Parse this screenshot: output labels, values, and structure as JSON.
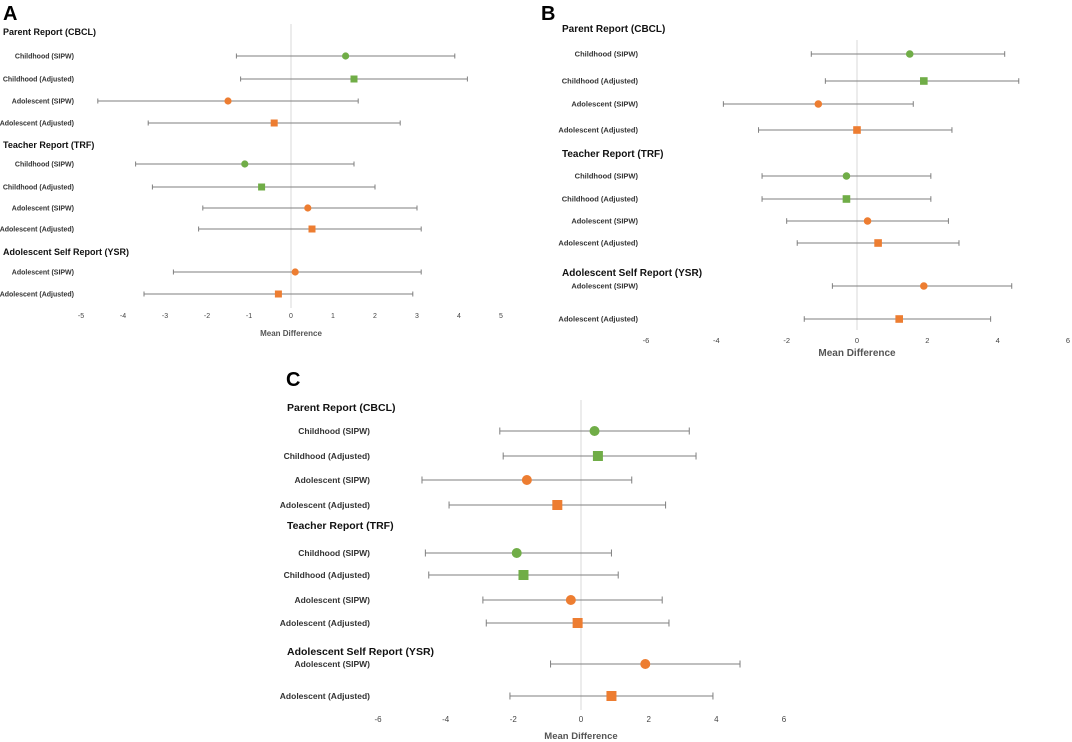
{
  "colors": {
    "green": "#70ad47",
    "orange": "#ed7d31",
    "ci": "#7f7f7f",
    "zero": "#d9d9d9"
  },
  "chart_data": [
    {
      "type": "forest",
      "panel": "A",
      "xlabel": "Mean Difference",
      "xlim": [
        -5,
        5
      ],
      "ticks": [
        "-5",
        "-4",
        "-3",
        "-2",
        "-1",
        "0",
        "1",
        "2",
        "3",
        "4",
        "5"
      ],
      "sections": [
        {
          "title": "Parent Report (CBCL)",
          "rows": [
            {
              "label": "Childhood (SIPW)",
              "mean": 1.3,
              "lower": -1.3,
              "upper": 3.9,
              "marker": "circle",
              "color": "green"
            },
            {
              "label": "Childhood (Adjusted)",
              "mean": 1.5,
              "lower": -1.2,
              "upper": 4.2,
              "marker": "square",
              "color": "green"
            },
            {
              "label": "Adolescent (SIPW)",
              "mean": -1.5,
              "lower": -4.6,
              "upper": 1.6,
              "marker": "circle",
              "color": "orange"
            },
            {
              "label": "Adolescent (Adjusted)",
              "mean": -0.4,
              "lower": -3.4,
              "upper": 2.6,
              "marker": "square",
              "color": "orange"
            }
          ]
        },
        {
          "title": "Teacher Report (TRF)",
          "rows": [
            {
              "label": "Childhood (SIPW)",
              "mean": -1.1,
              "lower": -3.7,
              "upper": 1.5,
              "marker": "circle",
              "color": "green"
            },
            {
              "label": "Childhood (Adjusted)",
              "mean": -0.7,
              "lower": -3.3,
              "upper": 2.0,
              "marker": "square",
              "color": "green"
            },
            {
              "label": "Adolescent (SIPW)",
              "mean": 0.4,
              "lower": -2.1,
              "upper": 3.0,
              "marker": "circle",
              "color": "orange"
            },
            {
              "label": "Adolescent (Adjusted)",
              "mean": 0.5,
              "lower": -2.2,
              "upper": 3.1,
              "marker": "square",
              "color": "orange"
            }
          ]
        },
        {
          "title": "Adolescent Self Report (YSR)",
          "rows": [
            {
              "label": "Adolescent (SIPW)",
              "mean": 0.1,
              "lower": -2.8,
              "upper": 3.1,
              "marker": "circle",
              "color": "orange"
            },
            {
              "label": "Adolescent (Adjusted)",
              "mean": -0.3,
              "lower": -3.5,
              "upper": 2.9,
              "marker": "square",
              "color": "orange"
            }
          ]
        }
      ]
    },
    {
      "type": "forest",
      "panel": "B",
      "xlabel": "Mean Difference",
      "xlim": [
        -6,
        6
      ],
      "ticks": [
        "-6",
        "-4",
        "-2",
        "0",
        "2",
        "4",
        "6"
      ],
      "sections": [
        {
          "title": "Parent Report (CBCL)",
          "rows": [
            {
              "label": "Childhood (SIPW)",
              "mean": 1.5,
              "lower": -1.3,
              "upper": 4.2,
              "marker": "circle",
              "color": "green"
            },
            {
              "label": "Childhood (Adjusted)",
              "mean": 1.9,
              "lower": -0.9,
              "upper": 4.6,
              "marker": "square",
              "color": "green"
            },
            {
              "label": "Adolescent (SIPW)",
              "mean": -1.1,
              "lower": -3.8,
              "upper": 1.6,
              "marker": "circle",
              "color": "orange"
            },
            {
              "label": "Adolescent (Adjusted)",
              "mean": 0.0,
              "lower": -2.8,
              "upper": 2.7,
              "marker": "square",
              "color": "orange"
            }
          ]
        },
        {
          "title": "Teacher Report (TRF)",
          "rows": [
            {
              "label": "Childhood (SIPW)",
              "mean": -0.3,
              "lower": -2.7,
              "upper": 2.1,
              "marker": "circle",
              "color": "green"
            },
            {
              "label": "Childhood (Adjusted)",
              "mean": -0.3,
              "lower": -2.7,
              "upper": 2.1,
              "marker": "square",
              "color": "green"
            },
            {
              "label": "Adolescent (SIPW)",
              "mean": 0.3,
              "lower": -2.0,
              "upper": 2.6,
              "marker": "circle",
              "color": "orange"
            },
            {
              "label": "Adolescent (Adjusted)",
              "mean": 0.6,
              "lower": -1.7,
              "upper": 2.9,
              "marker": "square",
              "color": "orange"
            }
          ]
        },
        {
          "title": "Adolescent Self Report (YSR)",
          "rows": [
            {
              "label": "Adolescent (SIPW)",
              "mean": 1.9,
              "lower": -0.7,
              "upper": 4.4,
              "marker": "circle",
              "color": "orange"
            },
            {
              "label": "Adolescent (Adjusted)",
              "mean": 1.2,
              "lower": -1.5,
              "upper": 3.8,
              "marker": "square",
              "color": "orange"
            }
          ]
        }
      ]
    },
    {
      "type": "forest",
      "panel": "C",
      "xlabel": "Mean Difference",
      "xlim": [
        -6,
        6
      ],
      "ticks": [
        "-6",
        "-4",
        "-2",
        "0",
        "2",
        "4",
        "6"
      ],
      "sections": [
        {
          "title": "Parent Report (CBCL)",
          "rows": [
            {
              "label": "Childhood (SIPW)",
              "mean": 0.4,
              "lower": -2.4,
              "upper": 3.2,
              "marker": "circle",
              "color": "green"
            },
            {
              "label": "Childhood (Adjusted)",
              "mean": 0.5,
              "lower": -2.3,
              "upper": 3.4,
              "marker": "square",
              "color": "green"
            },
            {
              "label": "Adolescent (SIPW)",
              "mean": -1.6,
              "lower": -4.7,
              "upper": 1.5,
              "marker": "circle",
              "color": "orange"
            },
            {
              "label": "Adolescent (Adjusted)",
              "mean": -0.7,
              "lower": -3.9,
              "upper": 2.5,
              "marker": "square",
              "color": "orange"
            }
          ]
        },
        {
          "title": "Teacher Report (TRF)",
          "rows": [
            {
              "label": "Childhood (SIPW)",
              "mean": -1.9,
              "lower": -4.6,
              "upper": 0.9,
              "marker": "circle",
              "color": "green"
            },
            {
              "label": "Childhood (Adjusted)",
              "mean": -1.7,
              "lower": -4.5,
              "upper": 1.1,
              "marker": "square",
              "color": "green"
            },
            {
              "label": "Adolescent (SIPW)",
              "mean": -0.3,
              "lower": -2.9,
              "upper": 2.4,
              "marker": "circle",
              "color": "orange"
            },
            {
              "label": "Adolescent (Adjusted)",
              "mean": -0.1,
              "lower": -2.8,
              "upper": 2.6,
              "marker": "square",
              "color": "orange"
            }
          ]
        },
        {
          "title": "Adolescent Self Report (YSR)",
          "rows": [
            {
              "label": "Adolescent (SIPW)",
              "mean": 1.9,
              "lower": -0.9,
              "upper": 4.7,
              "marker": "circle",
              "color": "orange"
            },
            {
              "label": "Adolescent (Adjusted)",
              "mean": 0.9,
              "lower": -2.1,
              "upper": 3.9,
              "marker": "square",
              "color": "orange"
            }
          ]
        }
      ]
    }
  ]
}
